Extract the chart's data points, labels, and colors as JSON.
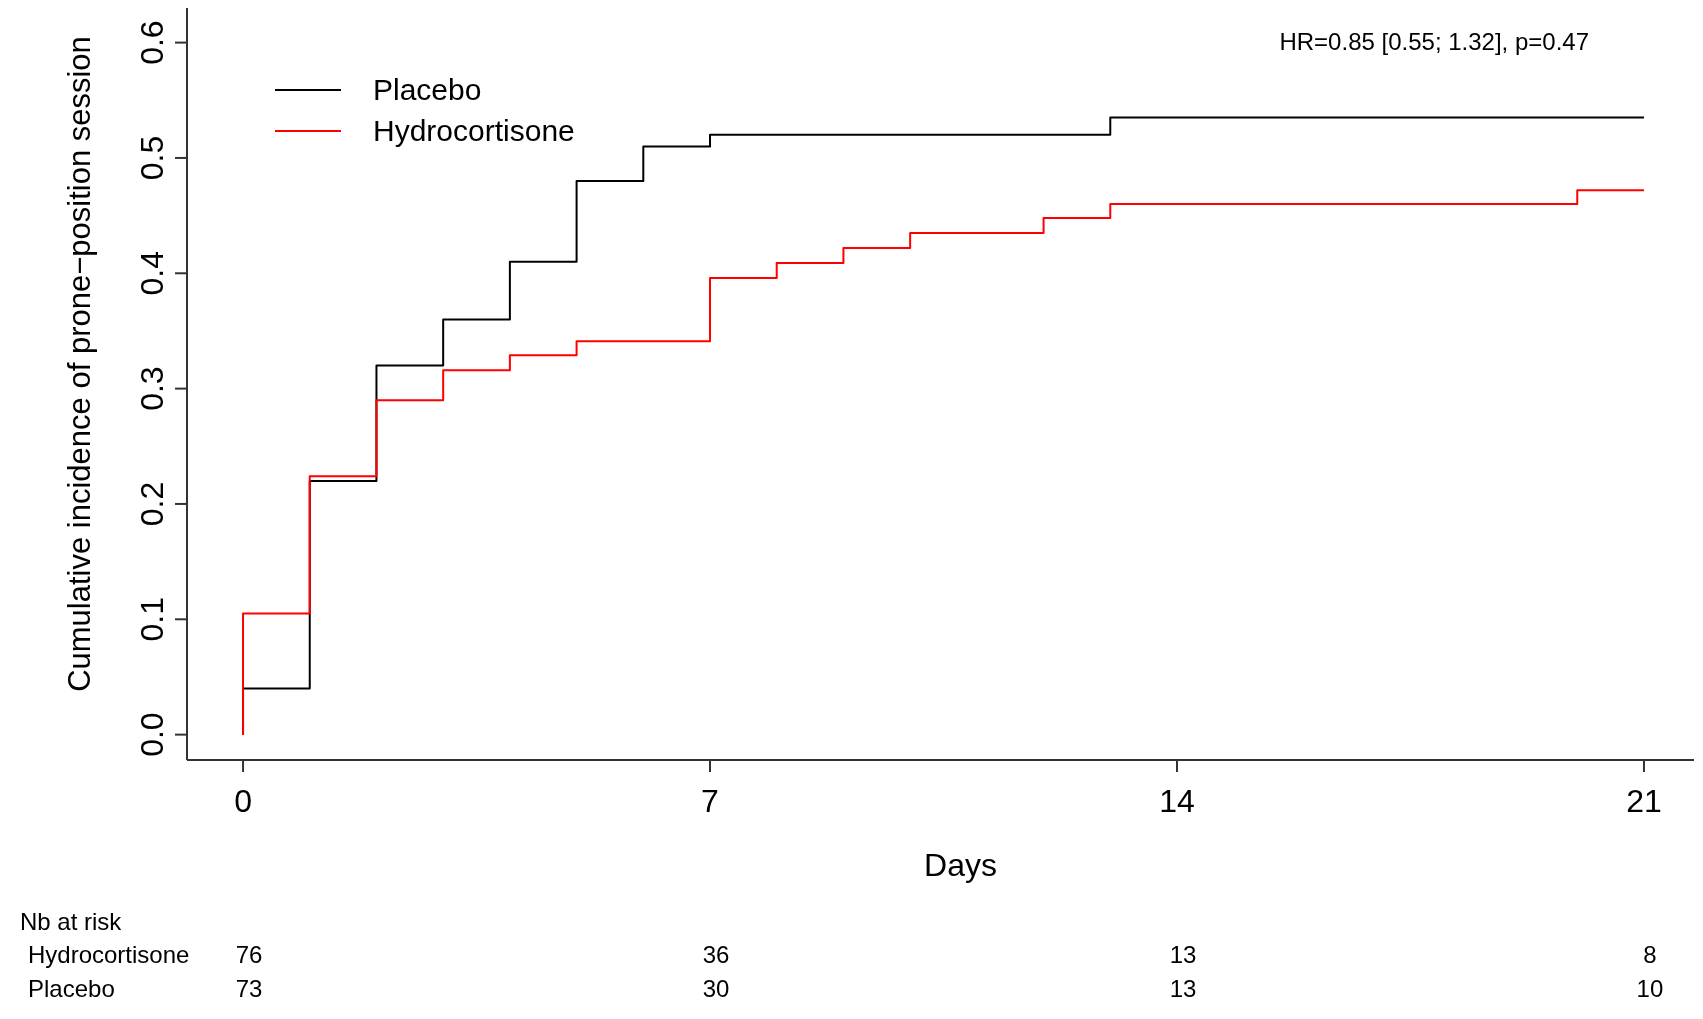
{
  "chart_data": {
    "type": "step",
    "xlabel": "Days",
    "ylabel": "Cumulative incidence of prone−position session",
    "xlim": [
      -0.84,
      21.75
    ],
    "ylim": [
      -0.022,
      0.63
    ],
    "xticks": [
      0,
      7,
      14,
      21
    ],
    "yticks": [
      {
        "value": 0,
        "label": "0.0"
      },
      {
        "value": 0.1,
        "label": "0.1"
      },
      {
        "value": 0.2,
        "label": "0.2"
      },
      {
        "value": 0.3,
        "label": "0.3"
      },
      {
        "value": 0.4,
        "label": "0.4"
      },
      {
        "value": 0.5,
        "label": "0.5"
      },
      {
        "value": 0.6,
        "label": "0.6"
      }
    ],
    "grid": false,
    "legend": "top left",
    "series": [
      {
        "name": "Placebo",
        "color": "#000000",
        "x": [
          0,
          0,
          1,
          2,
          3,
          4,
          5,
          6,
          7,
          13,
          21
        ],
        "values": [
          0,
          0.04,
          0.22,
          0.32,
          0.36,
          0.41,
          0.48,
          0.51,
          0.52,
          0.535,
          0.535
        ]
      },
      {
        "name": "Hydrocortisone",
        "color": "#ff0000",
        "x": [
          0,
          0,
          1,
          2,
          3,
          4,
          5,
          7,
          8,
          9,
          10,
          12,
          13,
          20,
          21
        ],
        "values": [
          0,
          0.105,
          0.224,
          0.29,
          0.316,
          0.329,
          0.341,
          0.396,
          0.409,
          0.422,
          0.435,
          0.448,
          0.46,
          0.472,
          0.472
        ]
      }
    ],
    "annotations": [
      "HR=0.85 [0.55; 1.32], p=0.47",
      "Nb at risk",
      "Hydrocortisone",
      "76",
      "36",
      "13",
      "8",
      "Placebo",
      "73",
      "30",
      "13",
      "10"
    ]
  }
}
